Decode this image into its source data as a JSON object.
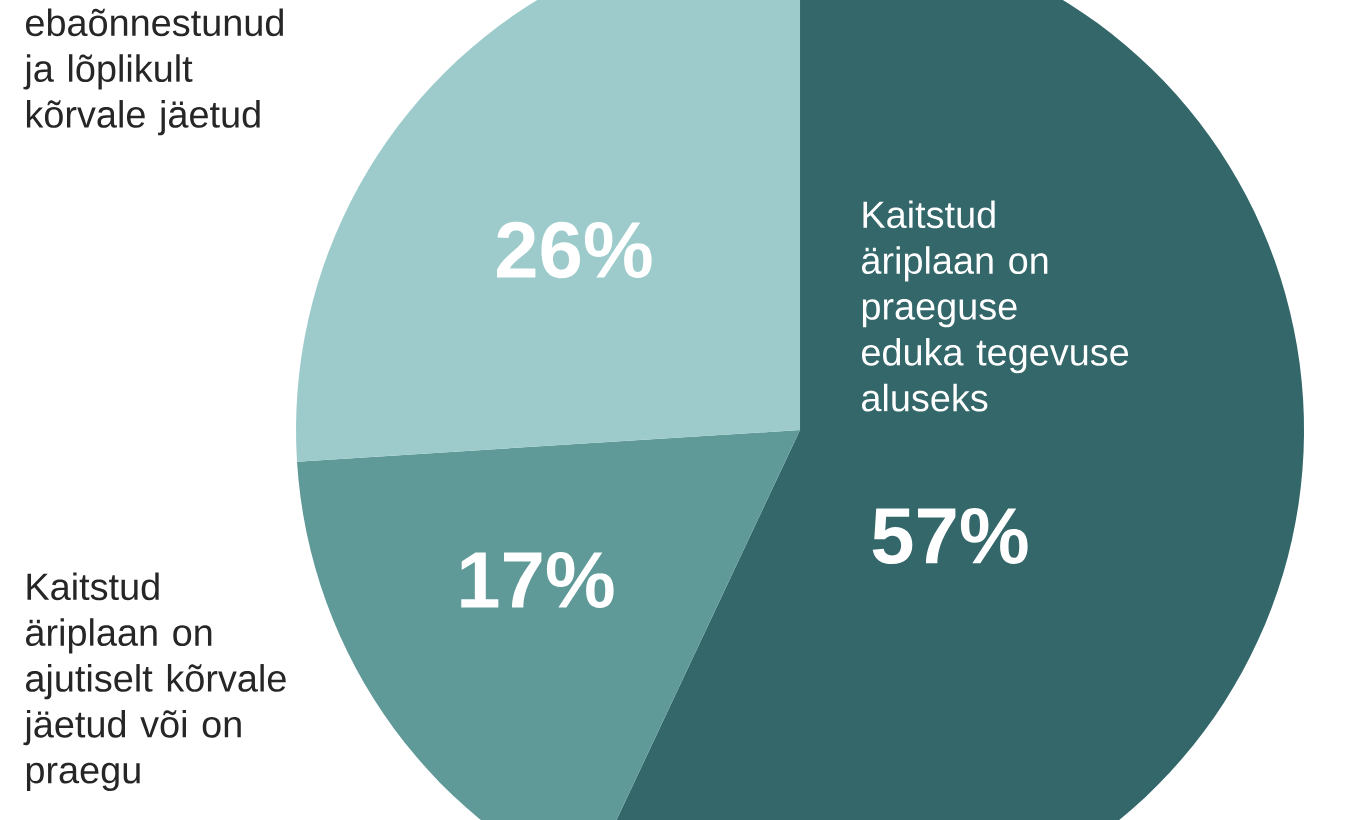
{
  "chart_data": {
    "type": "pie",
    "categories": [
      "Kaitstud äriplaan on praeguse eduka tegevuse aluseks",
      "Kaitstud äriplaan on ajutiselt kõrvale jäetud või on praegu",
      "ebaõnnestunud ja lõplikult kõrvale jäetud"
    ],
    "values": [
      57,
      17,
      26
    ],
    "value_labels": [
      "57%",
      "17%",
      "26%"
    ],
    "colors": [
      "#33676a",
      "#5f9998",
      "#9dcbcb"
    ]
  }
}
